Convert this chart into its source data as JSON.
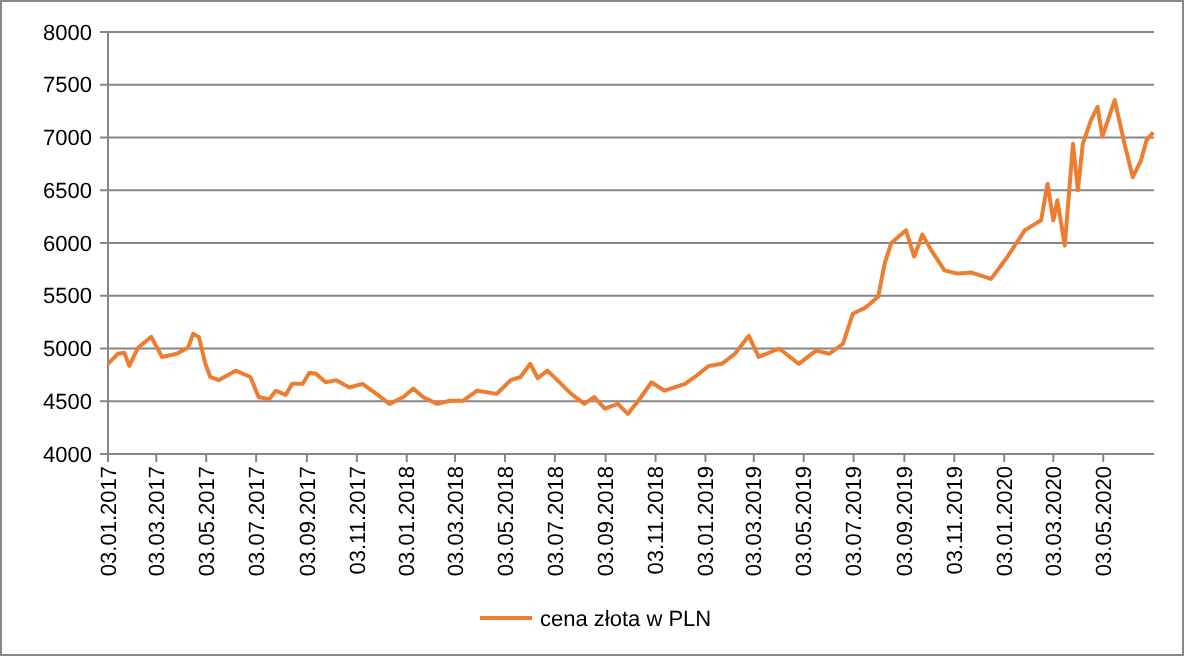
{
  "chart_data": {
    "type": "line",
    "xlim": [
      "2017-01-03",
      "2020-07-04"
    ],
    "ylim": [
      4000,
      8000
    ],
    "yticks": [
      4000,
      4500,
      5000,
      5500,
      6000,
      6500,
      7000,
      7500,
      8000
    ],
    "xticks": [
      {
        "value": "2017-01-03",
        "label": "03.01.2017"
      },
      {
        "value": "2017-03-03",
        "label": "03.03.2017"
      },
      {
        "value": "2017-05-03",
        "label": "03.05.2017"
      },
      {
        "value": "2017-07-03",
        "label": "03.07.2017"
      },
      {
        "value": "2017-09-03",
        "label": "03.09.2017"
      },
      {
        "value": "2017-11-03",
        "label": "03.11.2017"
      },
      {
        "value": "2018-01-03",
        "label": "03.01.2018"
      },
      {
        "value": "2018-03-03",
        "label": "03.03.2018"
      },
      {
        "value": "2018-05-03",
        "label": "03.05.2018"
      },
      {
        "value": "2018-07-03",
        "label": "03.07.2018"
      },
      {
        "value": "2018-09-03",
        "label": "03.09.2018"
      },
      {
        "value": "2018-11-03",
        "label": "03.11.2018"
      },
      {
        "value": "2019-01-03",
        "label": "03.01.2019"
      },
      {
        "value": "2019-03-03",
        "label": "03.03.2019"
      },
      {
        "value": "2019-05-03",
        "label": "03.05.2019"
      },
      {
        "value": "2019-07-03",
        "label": "03.07.2019"
      },
      {
        "value": "2019-09-03",
        "label": "03.09.2019"
      },
      {
        "value": "2019-11-03",
        "label": "03.11.2019"
      },
      {
        "value": "2020-01-03",
        "label": "03.01.2020"
      },
      {
        "value": "2020-03-03",
        "label": "03.03.2020"
      },
      {
        "value": "2020-05-03",
        "label": "03.05.2020"
      }
    ],
    "x": [
      "2017-01-03",
      "2017-01-15",
      "2017-01-23",
      "2017-01-29",
      "2017-02-09",
      "2017-02-25",
      "2017-03-10",
      "2017-03-28",
      "2017-04-11",
      "2017-04-17",
      "2017-04-24",
      "2017-05-02",
      "2017-05-08",
      "2017-05-18",
      "2017-06-08",
      "2017-06-26",
      "2017-07-06",
      "2017-07-19",
      "2017-07-27",
      "2017-08-08",
      "2017-08-16",
      "2017-08-29",
      "2017-09-06",
      "2017-09-14",
      "2017-09-26",
      "2017-10-09",
      "2017-10-25",
      "2017-11-10",
      "2017-11-27",
      "2017-12-13",
      "2017-12-30",
      "2018-01-11",
      "2018-01-23",
      "2018-02-09",
      "2018-02-25",
      "2018-03-13",
      "2018-03-30",
      "2018-04-23",
      "2018-05-10",
      "2018-05-22",
      "2018-06-03",
      "2018-06-12",
      "2018-06-24",
      "2018-07-06",
      "2018-07-23",
      "2018-08-08",
      "2018-08-20",
      "2018-09-02",
      "2018-09-18",
      "2018-09-30",
      "2018-10-13",
      "2018-10-29",
      "2018-11-14",
      "2018-12-09",
      "2018-12-21",
      "2019-01-07",
      "2019-01-23",
      "2019-02-08",
      "2019-02-25",
      "2019-03-09",
      "2019-04-03",
      "2019-04-27",
      "2019-05-18",
      "2019-06-03",
      "2019-06-20",
      "2019-07-02",
      "2019-07-18",
      "2019-08-02",
      "2019-08-10",
      "2019-08-18",
      "2019-09-05",
      "2019-09-15",
      "2019-09-25",
      "2019-10-06",
      "2019-10-22",
      "2019-11-07",
      "2019-11-24",
      "2019-12-18",
      "2020-01-07",
      "2020-01-28",
      "2020-02-17",
      "2020-02-25",
      "2020-03-03",
      "2020-03-08",
      "2020-03-17",
      "2020-03-27",
      "2020-04-02",
      "2020-04-08",
      "2020-04-18",
      "2020-04-26",
      "2020-05-02",
      "2020-05-17",
      "2020-05-29",
      "2020-06-08",
      "2020-06-18",
      "2020-06-25",
      "2020-07-03"
    ],
    "series": [
      {
        "name": "cena złota w PLN",
        "color": "#ed7d31",
        "values": [
          4855,
          4950,
          4960,
          4835,
          5010,
          5110,
          4920,
          4950,
          5010,
          5140,
          5110,
          4855,
          4730,
          4700,
          4790,
          4730,
          4540,
          4520,
          4600,
          4560,
          4665,
          4665,
          4770,
          4760,
          4680,
          4700,
          4630,
          4665,
          4570,
          4475,
          4540,
          4620,
          4540,
          4475,
          4505,
          4505,
          4600,
          4570,
          4700,
          4730,
          4855,
          4720,
          4790,
          4700,
          4570,
          4475,
          4540,
          4430,
          4475,
          4380,
          4505,
          4680,
          4600,
          4665,
          4730,
          4835,
          4855,
          4950,
          5120,
          4920,
          5000,
          4855,
          4980,
          4950,
          5045,
          5330,
          5390,
          5490,
          5810,
          6000,
          6120,
          5870,
          6080,
          5930,
          5740,
          5710,
          5720,
          5660,
          5870,
          6120,
          6215,
          6560,
          6215,
          6405,
          5975,
          6940,
          6500,
          6940,
          7165,
          7290,
          7010,
          7355,
          6940,
          6625,
          6780,
          6975,
          7050
        ]
      }
    ],
    "grid": "y",
    "legend": "bottom"
  }
}
